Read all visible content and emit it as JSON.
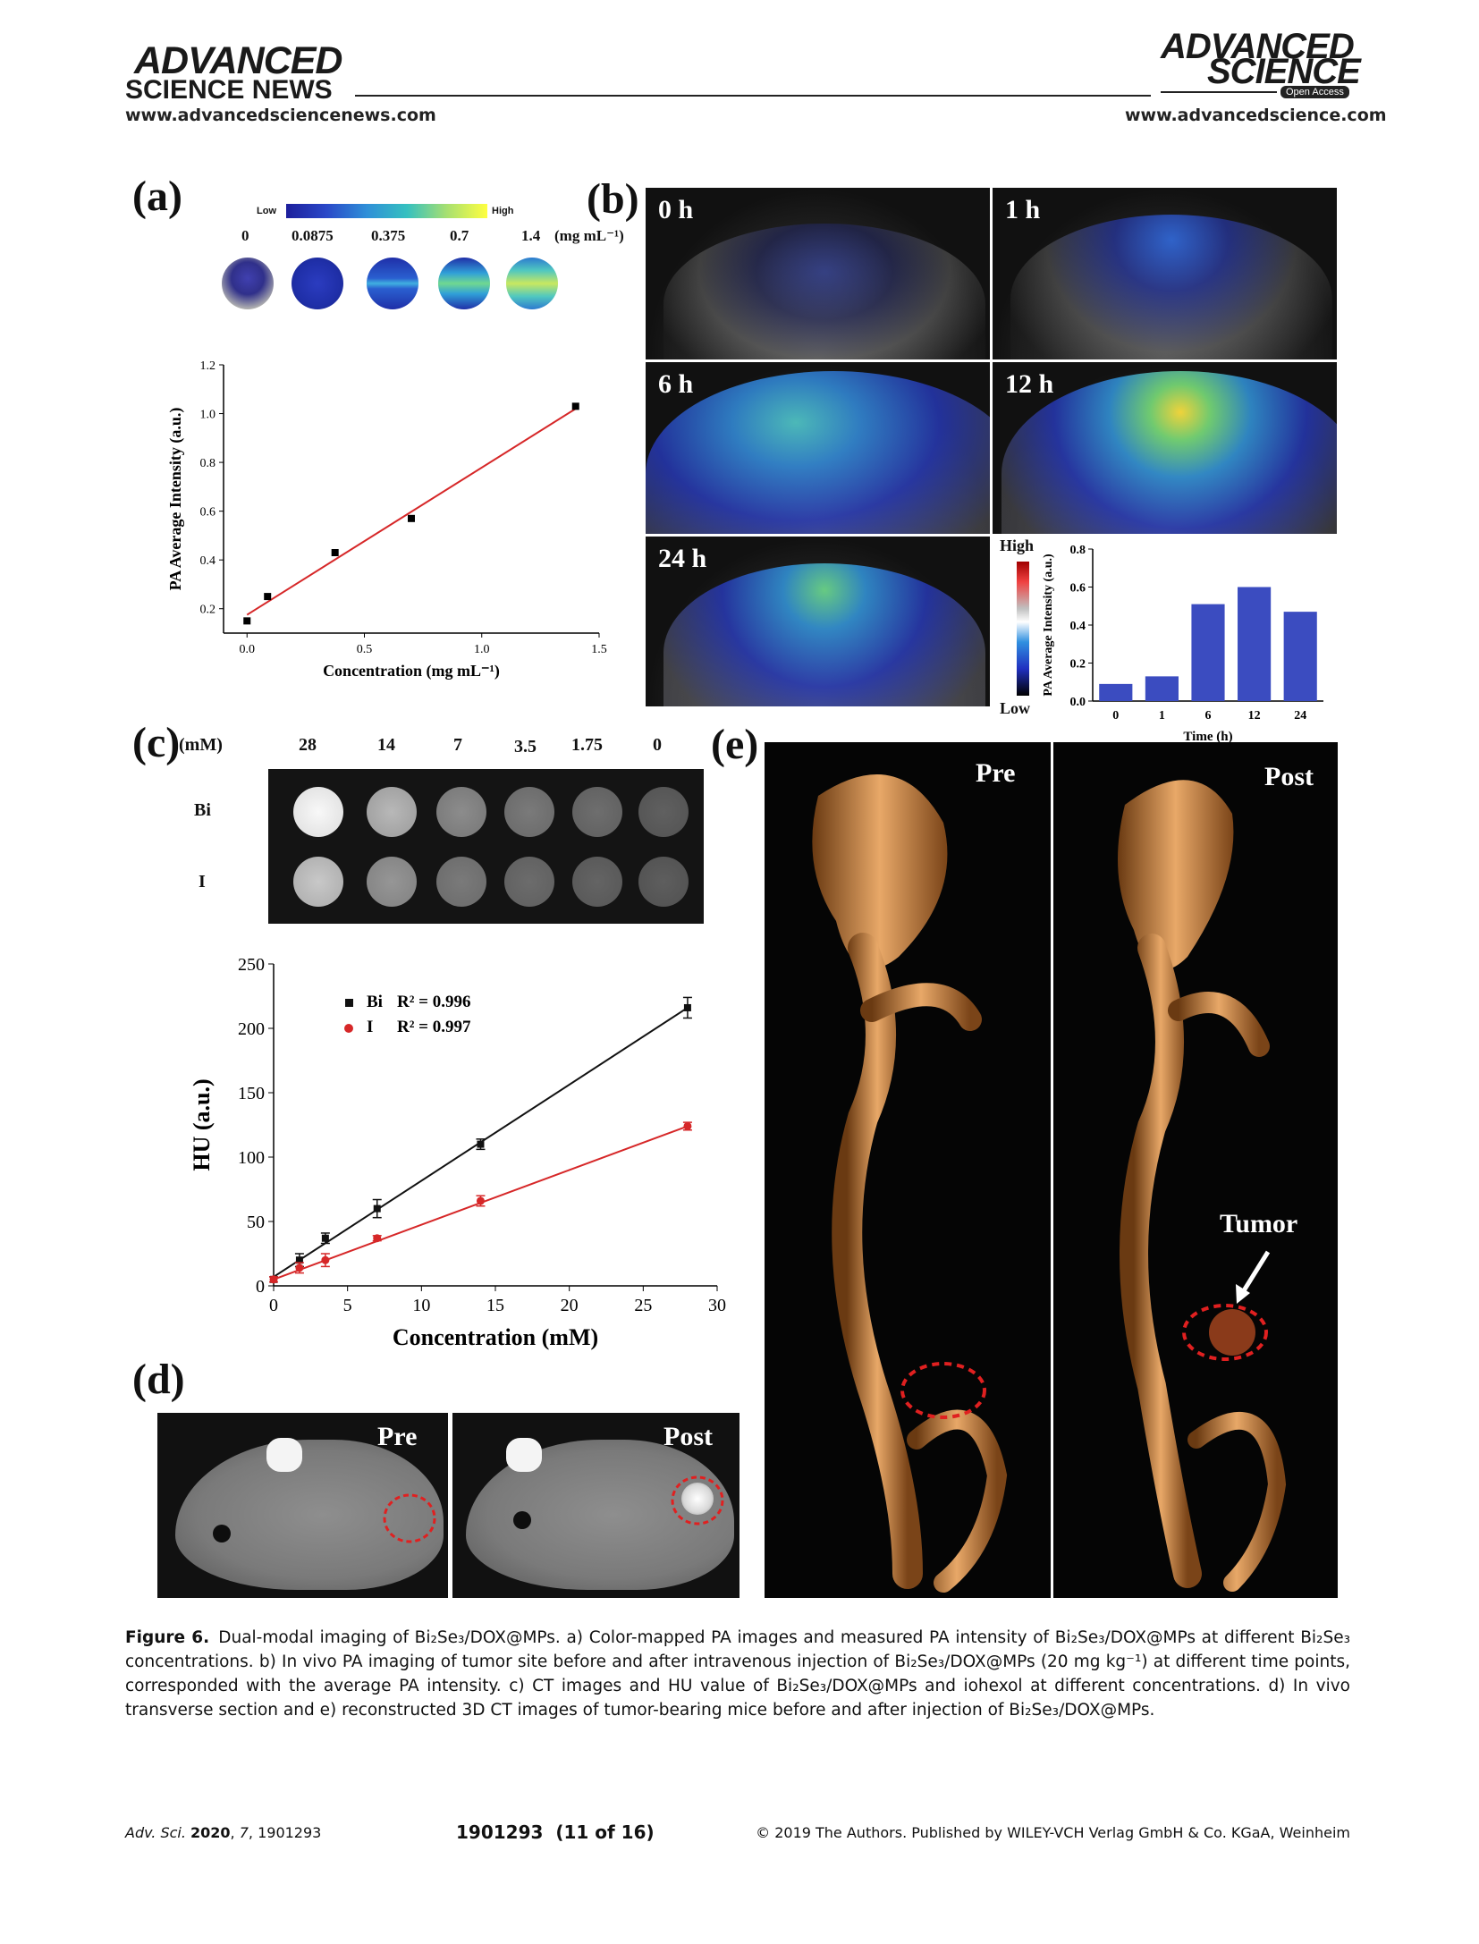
{
  "header": {
    "left_brand_line1": "ADVANCED",
    "left_brand_line2": "SCIENCE NEWS",
    "left_url": "www.advancedsciencenews.com",
    "right_brand_line1": "ADVANCED",
    "right_brand_line2": "SCIENCE",
    "right_badge": "Open Access",
    "right_url": "www.advancedscience.com"
  },
  "panel_a": {
    "letter": "(a)",
    "colorbar_low": "Low",
    "colorbar_high": "High",
    "concentrations": [
      "0",
      "0.0875",
      "0.375",
      "0.7",
      "1.4"
    ],
    "unit": "(mg mL⁻¹)"
  },
  "panel_b": {
    "letter": "(b)",
    "timepoints": [
      "0 h",
      "1 h",
      "6 h",
      "12 h",
      "24 h"
    ],
    "colorbar_high": "High",
    "colorbar_low": "Low"
  },
  "panel_c": {
    "letter": "(c)",
    "unit": "(mM)",
    "concentrations": [
      "28",
      "14",
      "7",
      "3.5",
      "1.75",
      "0"
    ],
    "rows": [
      "Bi",
      "I"
    ]
  },
  "panel_d": {
    "letter": "(d)",
    "pre": "Pre",
    "post": "Post"
  },
  "panel_e": {
    "letter": "(e)",
    "pre": "Pre",
    "post": "Post",
    "tumor": "Tumor"
  },
  "chart_data": [
    {
      "type": "scatter",
      "xlabel": "Concentration (mg mL⁻¹)",
      "ylabel": "PA Average Intensity (a.u.)",
      "xlim": [
        -0.1,
        1.5
      ],
      "ylim": [
        0.1,
        1.2
      ],
      "xticks": [
        "0.0",
        "0.5",
        "1.0",
        "1.5"
      ],
      "yticks": [
        "0.2",
        "0.4",
        "0.6",
        "0.8",
        "1.0",
        "1.2"
      ],
      "x": [
        0,
        0.0875,
        0.375,
        0.7,
        1.4
      ],
      "y": [
        0.15,
        0.25,
        0.43,
        0.57,
        1.03
      ],
      "fit_line": {
        "x": [
          0,
          1.4
        ],
        "y": [
          0.175,
          1.02
        ],
        "color": "#d62728"
      }
    },
    {
      "type": "bar",
      "xlabel": "Time (h)",
      "ylabel": "PA Average Intensity (a.u.)",
      "categories": [
        "0",
        "1",
        "6",
        "12",
        "24"
      ],
      "values": [
        0.09,
        0.13,
        0.51,
        0.6,
        0.47
      ],
      "ylim": [
        0,
        0.8
      ],
      "yticks": [
        "0.0",
        "0.2",
        "0.4",
        "0.6",
        "0.8"
      ],
      "color": "#3b4cc0"
    },
    {
      "type": "line",
      "xlabel": "Concentration (mM)",
      "ylabel": "HU (a.u.)",
      "xlim": [
        0,
        30
      ],
      "ylim": [
        0,
        250
      ],
      "xticks": [
        "0",
        "5",
        "10",
        "15",
        "20",
        "25",
        "30"
      ],
      "yticks": [
        "0",
        "50",
        "100",
        "150",
        "200",
        "250"
      ],
      "series": [
        {
          "name": "Bi",
          "r2": "R² = 0.996",
          "color": "#111111",
          "x": [
            0,
            1.75,
            3.5,
            7,
            14,
            28
          ],
          "y": [
            5,
            20,
            37,
            60,
            110,
            216
          ],
          "err": [
            2,
            5,
            4,
            7,
            4,
            8
          ],
          "fit": [
            7,
            216
          ]
        },
        {
          "name": "I",
          "r2": "R² = 0.997",
          "color": "#d62728",
          "x": [
            0,
            1.75,
            3.5,
            7,
            14,
            28
          ],
          "y": [
            5,
            14,
            20,
            37,
            66,
            124
          ],
          "err": [
            2,
            4,
            5,
            2,
            4,
            3
          ],
          "fit": [
            5,
            124
          ]
        }
      ]
    }
  ],
  "caption": {
    "label": "Figure 6.",
    "text": "Dual-modal imaging of Bi₂Se₃/DOX@MPs. a) Color-mapped PA images and measured PA intensity of Bi₂Se₃/DOX@MPs at different Bi₂Se₃ concentrations. b) In vivo PA imaging of tumor site before and after intravenous injection of Bi₂Se₃/DOX@MPs (20 mg kg⁻¹) at different time points, corresponded with the average PA intensity. c) CT images and HU value of Bi₂Se₃/DOX@MPs and iohexol at different concentrations. d) In vivo transverse section and e) reconstructed 3D CT images of tumor-bearing mice before and after injection of Bi₂Se₃/DOX@MPs."
  },
  "footer": {
    "journal": "Adv. Sci.",
    "year": "2020",
    "volume": "7",
    "article": "1901293",
    "page": "1901293  (11 of 16)",
    "copyright": "© 2019 The Authors. Published by WILEY-VCH Verlag GmbH & Co. KGaA, Weinheim"
  }
}
